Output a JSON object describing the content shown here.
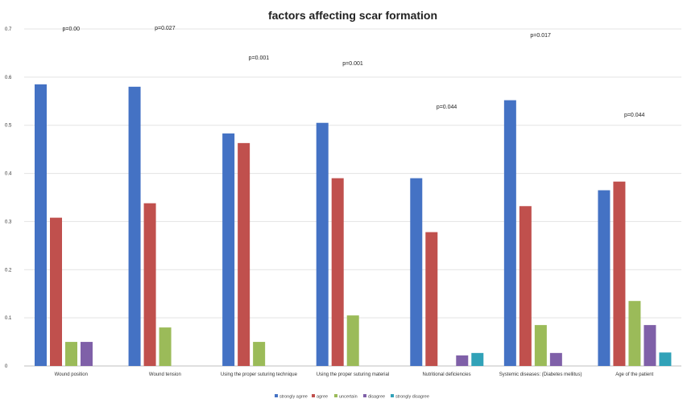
{
  "chart_data": {
    "type": "bar",
    "title": "factors affecting scar formation",
    "xlabel": "",
    "ylabel": "",
    "ylim": [
      0,
      0.7
    ],
    "yticks": [
      "0",
      "0.1",
      "0.2",
      "0.3",
      "0.4",
      "0.5",
      "0.6",
      "0.7"
    ],
    "grid": true,
    "legend_position": "bottom",
    "categories": [
      "Wound position",
      "Wound tension",
      "Using the proper suturing technique",
      "Using the proper suturing material",
      "Nutritional deficiencies",
      "Systemic diseases: (Diabetes mellitus)",
      "Age of the patient"
    ],
    "p_values": [
      "p=0.00",
      "p=0.027",
      "p=0.001",
      "p=0.001",
      "p=0.044",
      "p=0.017",
      "p=0.044"
    ],
    "series": [
      {
        "name": "strongly agree",
        "color": "#4472c4",
        "values": [
          0.585,
          0.58,
          0.483,
          0.505,
          0.39,
          0.552,
          0.365
        ]
      },
      {
        "name": "agree",
        "color": "#c0504d",
        "values": [
          0.308,
          0.338,
          0.463,
          0.39,
          0.278,
          0.332,
          0.383
        ]
      },
      {
        "name": "uncertain",
        "color": "#9bbb59",
        "values": [
          0.05,
          0.08,
          0.05,
          0.105,
          0,
          0.085,
          0.135
        ]
      },
      {
        "name": "disagree",
        "color": "#7f60a8",
        "values": [
          0.05,
          0,
          0,
          0,
          0.022,
          0.027,
          0.085
        ]
      },
      {
        "name": "strongly disagree",
        "color": "#31a2b8",
        "values": [
          0,
          0,
          0,
          0,
          0.027,
          0,
          0.028
        ]
      }
    ]
  }
}
